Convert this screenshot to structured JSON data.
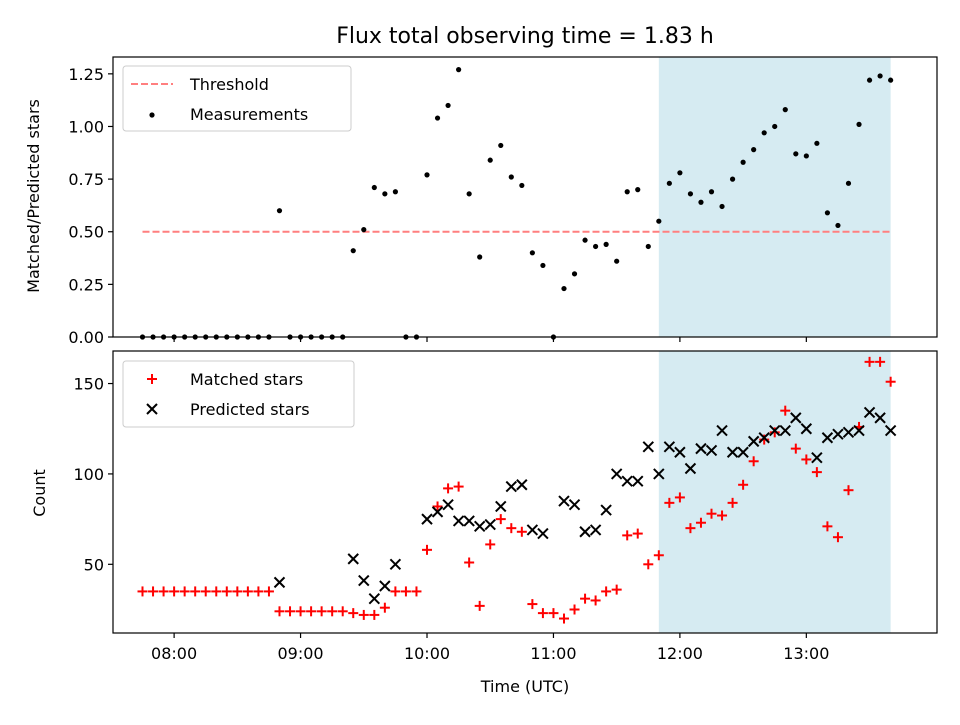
{
  "colors": {
    "threshold": "#ff7f7f",
    "measurement": "#000000",
    "matched": "#ff0000",
    "predicted": "#000000",
    "span_fill": "#add8e6"
  },
  "chart_data": [
    {
      "type": "scatter",
      "title": "Flux total observing time = 1.83 h",
      "xlabel": "",
      "ylabel": "Matched/Predicted stars",
      "xlim": [
        "07:31",
        "14:02"
      ],
      "ylim": [
        0,
        1.33
      ],
      "yticks": [
        0.0,
        0.25,
        0.5,
        0.75,
        1.0,
        1.25
      ],
      "ytick_labels": [
        "0.00",
        "0.25",
        "0.50",
        "0.75",
        "1.00",
        "1.25"
      ],
      "xticks": [
        "08:00",
        "09:00",
        "10:00",
        "11:00",
        "12:00",
        "13:00"
      ],
      "legend": {
        "position": "upper-left",
        "entries": [
          "Threshold",
          "Measurements"
        ]
      },
      "shaded_span": {
        "x_start": "11:50",
        "x_end": "13:40"
      },
      "threshold": {
        "name": "Threshold",
        "y": 0.5,
        "x_start": "07:45",
        "x_end": "13:40"
      },
      "series": [
        {
          "name": "Measurements",
          "points": [
            [
              "07:45",
              0
            ],
            [
              "07:50",
              0
            ],
            [
              "07:55",
              0
            ],
            [
              "08:00",
              0
            ],
            [
              "08:05",
              0
            ],
            [
              "08:10",
              0
            ],
            [
              "08:15",
              0
            ],
            [
              "08:20",
              0
            ],
            [
              "08:25",
              0
            ],
            [
              "08:30",
              0
            ],
            [
              "08:35",
              0
            ],
            [
              "08:40",
              0
            ],
            [
              "08:45",
              0
            ],
            [
              "08:50",
              0.6
            ],
            [
              "08:55",
              0
            ],
            [
              "09:00",
              0
            ],
            [
              "09:05",
              0
            ],
            [
              "09:10",
              0
            ],
            [
              "09:15",
              0
            ],
            [
              "09:20",
              0
            ],
            [
              "09:25",
              0.41
            ],
            [
              "09:30",
              0.51
            ],
            [
              "09:35",
              0.71
            ],
            [
              "09:40",
              0.68
            ],
            [
              "09:45",
              0.69
            ],
            [
              "09:50",
              0
            ],
            [
              "09:55",
              0
            ],
            [
              "10:00",
              0.77
            ],
            [
              "10:05",
              1.04
            ],
            [
              "10:10",
              1.1
            ],
            [
              "10:15",
              1.27
            ],
            [
              "10:20",
              0.68
            ],
            [
              "10:25",
              0.38
            ],
            [
              "10:30",
              0.84
            ],
            [
              "10:35",
              0.91
            ],
            [
              "10:40",
              0.76
            ],
            [
              "10:45",
              0.72
            ],
            [
              "10:50",
              0.4
            ],
            [
              "10:55",
              0.34
            ],
            [
              "11:00",
              0
            ],
            [
              "11:05",
              0.23
            ],
            [
              "11:10",
              0.3
            ],
            [
              "11:15",
              0.46
            ],
            [
              "11:20",
              0.43
            ],
            [
              "11:25",
              0.44
            ],
            [
              "11:30",
              0.36
            ],
            [
              "11:35",
              0.69
            ],
            [
              "11:40",
              0.7
            ],
            [
              "11:45",
              0.43
            ],
            [
              "11:50",
              0.55
            ],
            [
              "11:55",
              0.73
            ],
            [
              "12:00",
              0.78
            ],
            [
              "12:05",
              0.68
            ],
            [
              "12:10",
              0.64
            ],
            [
              "12:15",
              0.69
            ],
            [
              "12:20",
              0.62
            ],
            [
              "12:25",
              0.75
            ],
            [
              "12:30",
              0.83
            ],
            [
              "12:35",
              0.89
            ],
            [
              "12:40",
              0.97
            ],
            [
              "12:45",
              1.0
            ],
            [
              "12:50",
              1.08
            ],
            [
              "12:55",
              0.87
            ],
            [
              "13:00",
              0.86
            ],
            [
              "13:05",
              0.92
            ],
            [
              "13:10",
              0.59
            ],
            [
              "13:15",
              0.53
            ],
            [
              "13:20",
              0.73
            ],
            [
              "13:25",
              1.01
            ],
            [
              "13:30",
              1.22
            ],
            [
              "13:35",
              1.24
            ],
            [
              "13:40",
              1.22
            ]
          ]
        }
      ]
    },
    {
      "type": "scatter",
      "title": "",
      "xlabel": "Time (UTC)",
      "ylabel": "Count",
      "xlim": [
        "07:31",
        "14:02"
      ],
      "ylim": [
        12,
        168
      ],
      "yticks": [
        50,
        100,
        150
      ],
      "ytick_labels": [
        "50",
        "100",
        "150"
      ],
      "xticks": [
        "08:00",
        "09:00",
        "10:00",
        "11:00",
        "12:00",
        "13:00"
      ],
      "legend": {
        "position": "upper-left",
        "entries": [
          "Matched stars",
          "Predicted stars"
        ]
      },
      "shaded_span": {
        "x_start": "11:50",
        "x_end": "13:40"
      },
      "series": [
        {
          "name": "Matched stars",
          "marker": "plus",
          "points": [
            [
              "07:45",
              35
            ],
            [
              "07:50",
              35
            ],
            [
              "07:55",
              35
            ],
            [
              "08:00",
              35
            ],
            [
              "08:05",
              35
            ],
            [
              "08:10",
              35
            ],
            [
              "08:15",
              35
            ],
            [
              "08:20",
              35
            ],
            [
              "08:25",
              35
            ],
            [
              "08:30",
              35
            ],
            [
              "08:35",
              35
            ],
            [
              "08:40",
              35
            ],
            [
              "08:45",
              35
            ],
            [
              "08:50",
              24
            ],
            [
              "08:55",
              24
            ],
            [
              "09:00",
              24
            ],
            [
              "09:05",
              24
            ],
            [
              "09:10",
              24
            ],
            [
              "09:15",
              24
            ],
            [
              "09:20",
              24
            ],
            [
              "09:25",
              23
            ],
            [
              "09:30",
              22
            ],
            [
              "09:35",
              22
            ],
            [
              "09:40",
              26
            ],
            [
              "09:45",
              35
            ],
            [
              "09:50",
              35
            ],
            [
              "09:55",
              35
            ],
            [
              "10:00",
              58
            ],
            [
              "10:05",
              82
            ],
            [
              "10:10",
              92
            ],
            [
              "10:15",
              93
            ],
            [
              "10:20",
              51
            ],
            [
              "10:25",
              27
            ],
            [
              "10:30",
              61
            ],
            [
              "10:35",
              75
            ],
            [
              "10:40",
              70
            ],
            [
              "10:45",
              68
            ],
            [
              "10:50",
              28
            ],
            [
              "10:55",
              23
            ],
            [
              "11:00",
              23
            ],
            [
              "11:05",
              20
            ],
            [
              "11:10",
              25
            ],
            [
              "11:15",
              31
            ],
            [
              "11:20",
              30
            ],
            [
              "11:25",
              35
            ],
            [
              "11:30",
              36
            ],
            [
              "11:35",
              66
            ],
            [
              "11:40",
              67
            ],
            [
              "11:45",
              50
            ],
            [
              "11:50",
              55
            ],
            [
              "11:55",
              84
            ],
            [
              "12:00",
              87
            ],
            [
              "12:05",
              70
            ],
            [
              "12:10",
              73
            ],
            [
              "12:15",
              78
            ],
            [
              "12:20",
              77
            ],
            [
              "12:25",
              84
            ],
            [
              "12:30",
              94
            ],
            [
              "12:35",
              107
            ],
            [
              "12:40",
              119
            ],
            [
              "12:45",
              123
            ],
            [
              "12:50",
              135
            ],
            [
              "12:55",
              114
            ],
            [
              "13:00",
              108
            ],
            [
              "13:05",
              101
            ],
            [
              "13:10",
              71
            ],
            [
              "13:15",
              65
            ],
            [
              "13:20",
              91
            ],
            [
              "13:25",
              126
            ],
            [
              "13:30",
              162
            ],
            [
              "13:35",
              162
            ],
            [
              "13:40",
              151
            ]
          ]
        },
        {
          "name": "Predicted stars",
          "marker": "x",
          "points": [
            [
              "08:50",
              40
            ],
            [
              "09:25",
              53
            ],
            [
              "09:30",
              41
            ],
            [
              "09:35",
              31
            ],
            [
              "09:40",
              38
            ],
            [
              "09:45",
              50
            ],
            [
              "10:00",
              75
            ],
            [
              "10:05",
              79
            ],
            [
              "10:10",
              83
            ],
            [
              "10:15",
              74
            ],
            [
              "10:20",
              74
            ],
            [
              "10:25",
              71
            ],
            [
              "10:30",
              72
            ],
            [
              "10:35",
              82
            ],
            [
              "10:40",
              93
            ],
            [
              "10:45",
              94
            ],
            [
              "10:50",
              69
            ],
            [
              "10:55",
              67
            ],
            [
              "11:05",
              85
            ],
            [
              "11:10",
              83
            ],
            [
              "11:15",
              68
            ],
            [
              "11:20",
              69
            ],
            [
              "11:25",
              80
            ],
            [
              "11:30",
              100
            ],
            [
              "11:35",
              96
            ],
            [
              "11:40",
              96
            ],
            [
              "11:45",
              115
            ],
            [
              "11:50",
              100
            ],
            [
              "11:55",
              115
            ],
            [
              "12:00",
              112
            ],
            [
              "12:05",
              103
            ],
            [
              "12:10",
              114
            ],
            [
              "12:15",
              113
            ],
            [
              "12:20",
              124
            ],
            [
              "12:25",
              112
            ],
            [
              "12:30",
              112
            ],
            [
              "12:35",
              118
            ],
            [
              "12:40",
              120
            ],
            [
              "12:45",
              124
            ],
            [
              "12:50",
              124
            ],
            [
              "12:55",
              131
            ],
            [
              "13:00",
              125
            ],
            [
              "13:05",
              109
            ],
            [
              "13:10",
              120
            ],
            [
              "13:15",
              122
            ],
            [
              "13:20",
              123
            ],
            [
              "13:25",
              124
            ],
            [
              "13:30",
              134
            ],
            [
              "13:35",
              131
            ],
            [
              "13:40",
              124
            ]
          ]
        }
      ]
    }
  ]
}
